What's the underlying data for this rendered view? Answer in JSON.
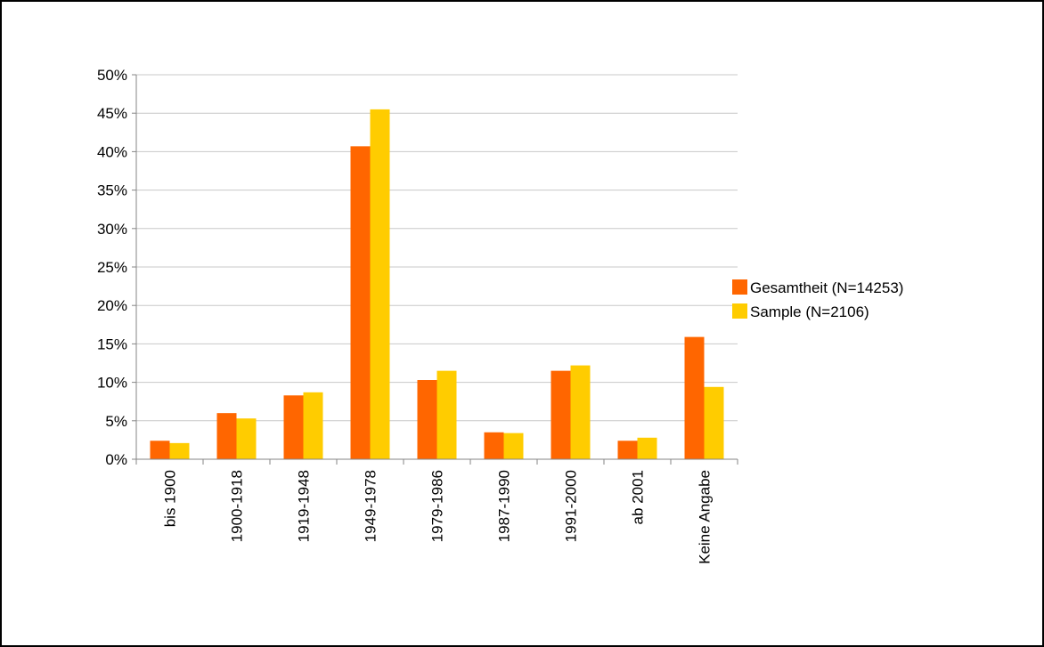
{
  "chart_data": {
    "type": "bar",
    "title": "",
    "xlabel": "",
    "ylabel": "",
    "ylim": [
      0,
      50
    ],
    "y_ticks": [
      "0%",
      "5%",
      "10%",
      "15%",
      "20%",
      "25%",
      "30%",
      "35%",
      "40%",
      "45%",
      "50%"
    ],
    "grid": true,
    "legend_position": "right",
    "categories": [
      "bis 1900",
      "1900-1918",
      "1919-1948",
      "1949-1978",
      "1979-1986",
      "1987-1990",
      "1991-2000",
      "ab 2001",
      "Keine Angabe"
    ],
    "series": [
      {
        "name": "Gesamtheit (N=14253)",
        "color": "#ff6600",
        "values": [
          2.4,
          6.0,
          8.3,
          40.7,
          10.3,
          3.5,
          11.5,
          2.4,
          15.9
        ]
      },
      {
        "name": "Sample (N=2106)",
        "color": "#ffcc00",
        "values": [
          2.1,
          5.3,
          8.7,
          45.5,
          11.5,
          3.4,
          12.2,
          2.8,
          9.4
        ]
      }
    ]
  }
}
